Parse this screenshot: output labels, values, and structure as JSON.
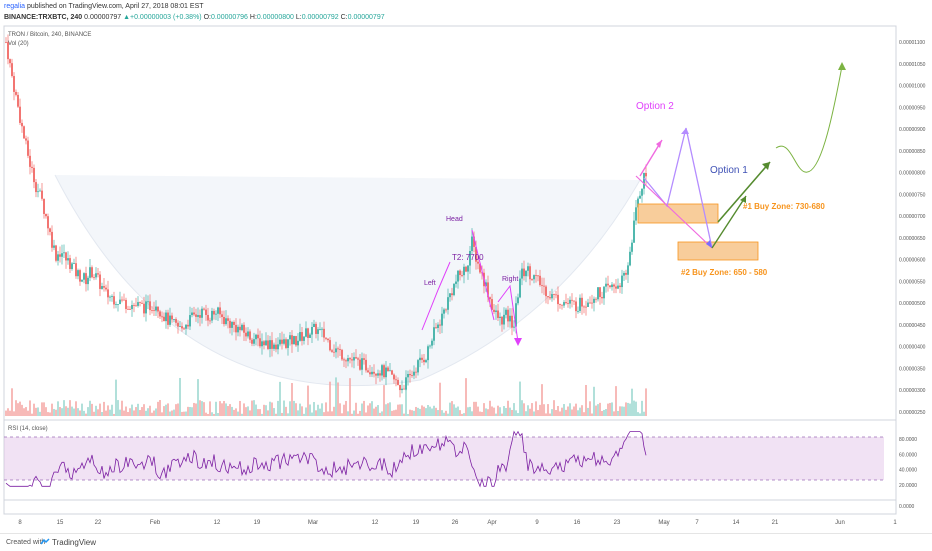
{
  "header": {
    "user": "regalia",
    "published": "published on TradingView.com, April 27, 2018 08:01 EST",
    "symbol": "BINANCE:TRXBTC, 240",
    "price": "0.00000797",
    "change": "▲+0.00000003 (+0.38%)",
    "ohlc": {
      "open_label": "O:",
      "open": "0.00000796",
      "high_label": "H:",
      "high": "0.00000800",
      "low_label": "L:",
      "low": "0.00000792",
      "close_label": "C:",
      "close": "0.00000797"
    }
  },
  "legend": {
    "main": "TRON / Bitcoin, 240, BINANCE",
    "vol": "Vol (20)",
    "rsi": "RSI (14, close)"
  },
  "annotations": {
    "option2": "Option 2",
    "option1": "Option 1",
    "head": "Head",
    "left": "Left",
    "right": "Right",
    "t2": "T2: 7700",
    "zone1": "#1 Buy Zone: 730-680",
    "zone2": "#2 Buy Zone: 650 - 580"
  },
  "footer": {
    "created": "Created with",
    "brand": "TradingView"
  },
  "colors": {
    "up": "#26a69a",
    "down": "#ef5350",
    "pink": "#e040fb",
    "purple": "#7b1fa2",
    "blue": "#3f51b5",
    "green": "#558b2f",
    "orange": "#f7941d",
    "rsi": "#7b1fa2"
  },
  "chart_data": {
    "type": "candlestick",
    "price_axis_ticks": [
      "0.00001100",
      "0.00001050",
      "0.00001000",
      "0.00000950",
      "0.00000900",
      "0.00000850",
      "0.00000800",
      "0.00000750",
      "0.00000700",
      "0.00000650",
      "0.00000600",
      "0.00000550",
      "0.00000500",
      "0.00000450",
      "0.00000400",
      "0.00000350",
      "0.00000300",
      "0.00000250"
    ],
    "rsi_ticks": [
      "80.0000",
      "60.0000",
      "40.0000",
      "20.0000"
    ],
    "rsi_extra_tick": "0.0000",
    "x_ticks": [
      "8",
      "15",
      "22",
      "Feb",
      "12",
      "19",
      "Mar",
      "12",
      "19",
      "26",
      "Apr",
      "9",
      "16",
      "23",
      "May",
      "7",
      "14",
      "21",
      "Jun",
      "1"
    ],
    "price_path": [
      [
        0,
        1100
      ],
      [
        6,
        1020
      ],
      [
        12,
        950
      ],
      [
        18,
        880
      ],
      [
        24,
        820
      ],
      [
        30,
        770
      ],
      [
        36,
        735
      ],
      [
        40,
        700
      ],
      [
        45,
        650
      ],
      [
        50,
        610
      ],
      [
        55,
        620
      ],
      [
        60,
        600
      ],
      [
        65,
        590
      ],
      [
        70,
        570
      ],
      [
        75,
        560
      ],
      [
        80,
        555
      ],
      [
        85,
        575
      ],
      [
        90,
        560
      ],
      [
        95,
        540
      ],
      [
        100,
        520
      ],
      [
        110,
        510
      ],
      [
        120,
        500
      ],
      [
        130,
        495
      ],
      [
        140,
        490
      ],
      [
        150,
        500
      ],
      [
        155,
        480
      ],
      [
        160,
        465
      ],
      [
        168,
        450
      ],
      [
        175,
        440
      ],
      [
        180,
        455
      ],
      [
        188,
        470
      ],
      [
        195,
        480
      ],
      [
        203,
        470
      ],
      [
        210,
        480
      ],
      [
        220,
        460
      ],
      [
        230,
        445
      ],
      [
        240,
        430
      ],
      [
        250,
        415
      ],
      [
        260,
        410
      ],
      [
        270,
        405
      ],
      [
        280,
        410
      ],
      [
        290,
        415
      ],
      [
        300,
        430
      ],
      [
        310,
        440
      ],
      [
        318,
        425
      ],
      [
        326,
        400
      ],
      [
        335,
        385
      ],
      [
        345,
        370
      ],
      [
        355,
        360
      ],
      [
        365,
        350
      ],
      [
        375,
        345
      ],
      [
        385,
        330
      ],
      [
        395,
        305
      ],
      [
        404,
        330
      ],
      [
        412,
        360
      ],
      [
        420,
        380
      ],
      [
        428,
        430
      ],
      [
        436,
        470
      ],
      [
        444,
        520
      ],
      [
        452,
        560
      ],
      [
        460,
        580
      ],
      [
        466,
        640
      ],
      [
        472,
        590
      ],
      [
        480,
        540
      ],
      [
        488,
        480
      ],
      [
        494,
        460
      ],
      [
        500,
        470
      ],
      [
        508,
        450
      ],
      [
        514,
        560
      ],
      [
        520,
        580
      ],
      [
        528,
        560
      ],
      [
        536,
        540
      ],
      [
        544,
        520
      ],
      [
        552,
        510
      ],
      [
        560,
        500
      ],
      [
        570,
        495
      ],
      [
        580,
        505
      ],
      [
        590,
        520
      ],
      [
        600,
        530
      ],
      [
        610,
        540
      ],
      [
        620,
        560
      ],
      [
        626,
        650
      ],
      [
        632,
        740
      ],
      [
        638,
        790
      ],
      [
        644,
        800
      ]
    ],
    "buy_zone_1": [
      730,
      680
    ],
    "buy_zone_2": [
      650,
      580
    ],
    "head_value": 7700
  }
}
